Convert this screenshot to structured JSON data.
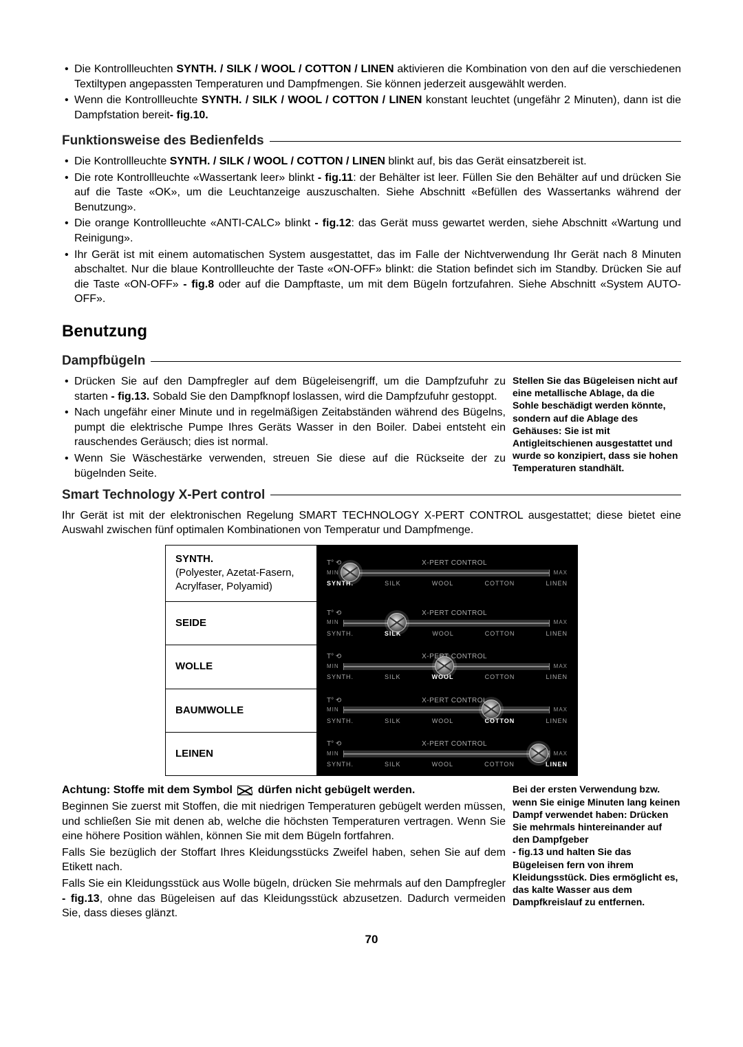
{
  "intro_bullets": [
    {
      "pre": "Die Kontrollleuchten ",
      "bold": "SYNTH. / SILK / WOOL / COTTON / LINEN",
      "post": " aktivieren die Kombination von den auf die verschiedenen Textiltypen angepassten Temperaturen und Dampfmengen. Sie können jederzeit ausgewählt werden."
    },
    {
      "pre": "Wenn die Kontrollleuchte ",
      "bold": "SYNTH. / SILK / WOOL / COTTON / LINEN",
      "post": " konstant leuchtet (ungefähr 2 Minuten), dann ist die Dampfstation bereit",
      "figref": "- fig.10."
    }
  ],
  "section1_heading": "Funktionsweise des Bedienfelds",
  "section1_bullets": [
    {
      "pre": "Die Kontrollleuchte ",
      "bold": "SYNTH. / SILK / WOOL / COTTON / LINEN",
      "post": " blinkt auf, bis das Gerät einsatzbereit ist."
    },
    {
      "full": "Die rote Kontrollleuchte «Wassertank leer» blinkt ",
      "figref": "- fig.11",
      "tail": ": der Behälter ist leer. Füllen Sie den Behälter auf und drücken Sie auf die Taste «OK», um die Leuchtanzeige auszuschalten. Siehe Abschnitt «Befüllen des Wassertanks während der Benutzung»."
    },
    {
      "full": "Die orange Kontrollleuchte «ANTI-CALC» blinkt ",
      "figref": "- fig.12",
      "tail": ": das Gerät muss gewartet werden, siehe Abschnitt «Wartung und Reinigung»."
    },
    {
      "full": "Ihr Gerät ist mit einem automatischen System ausgestattet, das im Falle der Nichtverwendung Ihr Gerät nach 8 Minuten abschaltet. Nur die blaue Kontrollleuchte der Taste «ON-OFF» blinkt: die Station befindet sich im Standby. Drücken Sie auf die Taste «ON-OFF» ",
      "figref": "- fig.8",
      "tail": "  oder auf die Dampftaste, um mit dem Bügeln fortzufahren. Siehe Abschnitt «System AUTO-OFF»."
    }
  ],
  "main_heading": "Benutzung",
  "section2_heading": "Dampfbügeln",
  "dampf_note": "Stellen Sie das Bügeleisen nicht auf eine metallische Ablage, da die Sohle beschädigt werden könnte, sondern auf die Ablage des Gehäuses: Sie ist mit Antigleitschienen ausgestattet und wurde so konzipiert, dass sie hohen Temperaturen standhält.",
  "section2_bullets": [
    {
      "full": "Drücken Sie auf den Dampfregler auf dem Bügeleisengriff, um die Dampfzufuhr zu starten ",
      "figref": "- fig.13.",
      "tail": " Sobald Sie den Dampfknopf loslassen, wird die Dampfzufuhr gestoppt."
    },
    {
      "full": "Nach ungefähr einer Minute und in regelmäßigen Zeitabständen während des Bügelns, pumpt die elektrische Pumpe Ihres Geräts Wasser in den Boiler. Dabei entsteht ein rauschendes Geräusch; dies ist normal."
    },
    {
      "full": "Wenn Sie Wäschestärke verwenden, streuen Sie diese auf die Rückseite der zu bügelnden Seite."
    }
  ],
  "section3_heading": "Smart Technology X-Pert control",
  "section3_body": "Ihr Gerät ist mit der elektronischen Regelung SMART TECHNOLOGY X-PERT CONTROL ausgestattet; diese bietet eine Auswahl zwischen fünf optimalen Kombinationen von Temperatur und Dampfmenge.",
  "fabric_labels": [
    "SYNTH.",
    "SILK",
    "WOOL",
    "COTTON",
    "LINEN"
  ],
  "fabrics": [
    {
      "label_bold": "SYNTH.",
      "label_sub": "(Polyester, Azetat-Fasern, Acrylfaser, Polyamid)",
      "active_index": 0,
      "knob_pct": 3
    },
    {
      "label_bold": "SEIDE",
      "active_index": 1,
      "knob_pct": 26
    },
    {
      "label_bold": "WOLLE",
      "active_index": 2,
      "knob_pct": 49
    },
    {
      "label_bold": "BAUMWOLLE",
      "active_index": 3,
      "knob_pct": 72
    },
    {
      "label_bold": "LEINEN",
      "active_index": 4,
      "knob_pct": 95
    }
  ],
  "warning_line_pre": "Achtung: Stoffe mit dem Symbol ",
  "warning_line_post": " dürfen nicht gebügelt werden.",
  "usage_note": "Bei der ersten Verwendung bzw. wenn Sie einige Minuten lang keinen Dampf verwendet haben: Drücken Sie mehrmals hintereinander auf den Dampfgeber\n- fig.13 und halten Sie das Bügeleisen fern von ihrem Kleidungsstück. Dies ermöglicht es, das kalte Wasser aus dem Dampfkreislauf zu entfernen.",
  "bottom_paragraphs": [
    "Beginnen Sie zuerst mit Stoffen, die mit niedrigen Temperaturen gebügelt werden müssen, und schließen Sie mit denen ab, welche die höchsten Temperaturen vertragen. Wenn Sie eine höhere Position wählen, können Sie mit dem Bügeln fortfahren.",
    "Falls Sie bezüglich der Stoffart Ihres Kleidungsstücks Zweifel haben, sehen Sie auf dem Etikett nach."
  ],
  "bottom_last": {
    "pre": "Falls Sie ein Kleidungsstück aus Wolle bügeln, drücken Sie mehrmals auf den Dampfregler ",
    "figref": "- fig.13",
    "tail": ", ohne das Bügeleisen auf das Kleidungsstück abzusetzen. Dadurch vermeiden Sie, dass dieses glänzt."
  },
  "xpert_label": "X-PERT CONTROL",
  "min_label": "MIN",
  "max_label": "MAX",
  "temp_symbol": "T°",
  "page_number": "70"
}
